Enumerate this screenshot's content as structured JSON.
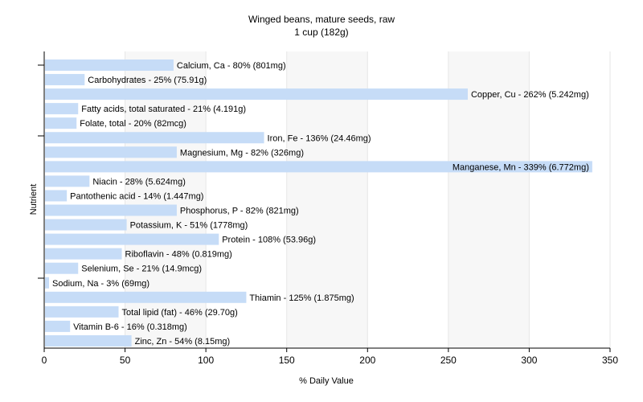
{
  "chart_data": {
    "type": "bar",
    "orientation": "horizontal",
    "title": "Winged beans, mature seeds, raw",
    "subtitle": "1 cup (182g)",
    "xlabel": "% Daily Value",
    "ylabel": "Nutrient",
    "xlim": [
      0,
      350
    ],
    "xticks": [
      0,
      50,
      100,
      150,
      200,
      250,
      300,
      350
    ],
    "grid": true,
    "bar_color": "#c6dcf7",
    "categories": [
      "Calcium, Ca",
      "Carbohydrates",
      "Copper, Cu",
      "Fatty acids, total saturated",
      "Folate, total",
      "Iron, Fe",
      "Magnesium, Mg",
      "Manganese, Mn",
      "Niacin",
      "Pantothenic acid",
      "Phosphorus, P",
      "Potassium, K",
      "Protein",
      "Riboflavin",
      "Selenium, Se",
      "Sodium, Na",
      "Thiamin",
      "Total lipid (fat)",
      "Vitamin B-6",
      "Zinc, Zn"
    ],
    "values": [
      80,
      25,
      262,
      21,
      20,
      136,
      82,
      339,
      28,
      14,
      82,
      51,
      108,
      48,
      21,
      3,
      125,
      46,
      16,
      54
    ],
    "labels": [
      "Calcium, Ca - 80% (801mg)",
      "Carbohydrates - 25% (75.91g)",
      "Copper, Cu - 262% (5.242mg)",
      "Fatty acids, total saturated - 21% (4.191g)",
      "Folate, total - 20% (82mcg)",
      "Iron, Fe - 136% (24.46mg)",
      "Magnesium, Mg - 82% (326mg)",
      "Manganese, Mn - 339% (6.772mg)",
      "Niacin - 28% (5.624mg)",
      "Pantothenic acid - 14% (1.447mg)",
      "Phosphorus, P - 82% (821mg)",
      "Potassium, K - 51% (1778mg)",
      "Protein - 108% (53.96g)",
      "Riboflavin - 48% (0.819mg)",
      "Selenium, Se - 21% (14.9mcg)",
      "Sodium, Na - 3% (69mg)",
      "Thiamin - 125% (1.875mg)",
      "Total lipid (fat) - 46% (29.70g)",
      "Vitamin B-6 - 16% (0.318mg)",
      "Zinc, Zn - 54% (8.15mg)"
    ]
  }
}
